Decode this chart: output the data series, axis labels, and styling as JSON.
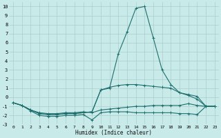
{
  "xlabel": "Humidex (Indice chaleur)",
  "bg_color": "#c8eae8",
  "grid_color": "#a8ceca",
  "line_color": "#1e6e6e",
  "x_values": [
    0,
    1,
    2,
    3,
    4,
    5,
    6,
    7,
    8,
    9,
    10,
    11,
    12,
    13,
    14,
    15,
    16,
    17,
    18,
    19,
    20,
    21,
    22,
    23
  ],
  "line1": [
    -0.6,
    -0.9,
    -1.5,
    -2.0,
    -2.1,
    -2.1,
    -2.0,
    -2.0,
    -1.9,
    -2.5,
    -1.7,
    -1.6,
    -1.6,
    -1.6,
    -1.7,
    -1.7,
    -1.7,
    -1.7,
    -1.7,
    -1.8,
    -1.8,
    -1.9,
    -1.0,
    -1.0
  ],
  "line2": [
    -0.6,
    -0.9,
    -1.4,
    -1.7,
    -1.8,
    -1.8,
    -1.7,
    -1.7,
    -1.6,
    -1.7,
    -1.4,
    -1.3,
    -1.2,
    -1.1,
    -1.0,
    -1.0,
    -0.9,
    -0.9,
    -0.9,
    -0.9,
    -0.7,
    -0.9,
    -1.0,
    -1.0
  ],
  "line3": [
    -0.6,
    -0.9,
    -1.4,
    -1.8,
    -1.9,
    -1.9,
    -1.8,
    -1.8,
    -1.7,
    -1.6,
    0.8,
    1.1,
    1.3,
    1.4,
    1.4,
    1.3,
    1.2,
    1.1,
    1.0,
    0.5,
    0.3,
    0.1,
    -1.0,
    -1.0
  ],
  "line4": [
    -0.6,
    -0.9,
    -1.4,
    -1.8,
    -1.9,
    -1.9,
    -1.8,
    -1.8,
    -1.7,
    -1.6,
    0.8,
    1.0,
    4.8,
    7.2,
    9.8,
    10.0,
    6.5,
    3.0,
    1.4,
    0.5,
    0.2,
    -0.2,
    -1.0,
    -1.0
  ],
  "xlim": [
    -0.5,
    23.5
  ],
  "ylim": [
    -3.0,
    10.5
  ],
  "xticks": [
    0,
    1,
    2,
    3,
    4,
    5,
    6,
    7,
    8,
    9,
    10,
    11,
    12,
    13,
    14,
    15,
    16,
    17,
    18,
    19,
    20,
    21,
    22,
    23
  ],
  "yticks": [
    -3,
    -2,
    -1,
    0,
    1,
    2,
    3,
    4,
    5,
    6,
    7,
    8,
    9,
    10
  ],
  "markersize": 2.5,
  "linewidth": 0.8
}
